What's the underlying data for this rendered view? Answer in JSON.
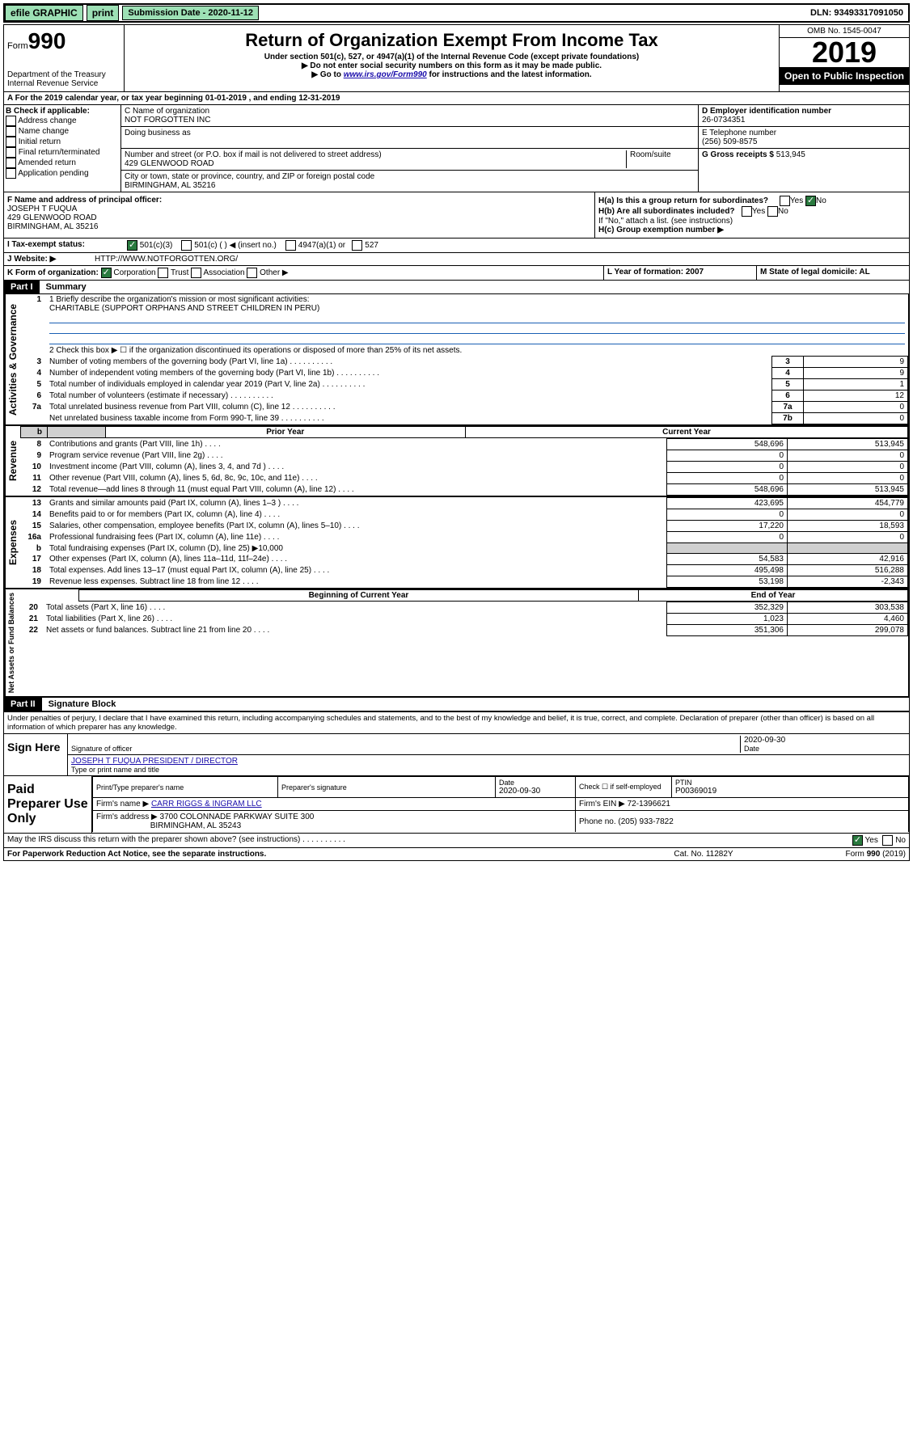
{
  "topbar": {
    "efile": "efile GRAPHIC",
    "print": "print",
    "submission": "Submission Date - 2020-11-12",
    "dln": "DLN: 93493317091050"
  },
  "header": {
    "form_prefix": "Form",
    "form_num": "990",
    "dept": "Department of the Treasury\nInternal Revenue Service",
    "title": "Return of Organization Exempt From Income Tax",
    "subtitle": "Under section 501(c), 527, or 4947(a)(1) of the Internal Revenue Code (except private foundations)",
    "note1": "▶ Do not enter social security numbers on this form as it may be made public.",
    "note2_pre": "▶ Go to ",
    "note2_link": "www.irs.gov/Form990",
    "note2_post": " for instructions and the latest information.",
    "omb": "OMB No. 1545-0047",
    "year": "2019",
    "open": "Open to Public Inspection"
  },
  "rowA": "A   For the 2019 calendar year, or tax year beginning 01-01-2019    , and ending 12-31-2019",
  "boxB": {
    "label": "B Check if applicable:",
    "opts": [
      "Address change",
      "Name change",
      "Initial return",
      "Final return/terminated",
      "Amended return",
      "Application pending"
    ]
  },
  "boxC": {
    "name_label": "C Name of organization",
    "name": "NOT FORGOTTEN INC",
    "dba_label": "Doing business as",
    "addr_label": "Number and street (or P.O. box if mail is not delivered to street address)",
    "room_label": "Room/suite",
    "addr": "429 GLENWOOD ROAD",
    "city_label": "City or town, state or province, country, and ZIP or foreign postal code",
    "city": "BIRMINGHAM, AL  35216"
  },
  "boxD": {
    "label": "D Employer identification number",
    "val": "26-0734351"
  },
  "boxE": {
    "label": "E Telephone number",
    "val": "(256) 509-8575"
  },
  "boxG": {
    "label": "G Gross receipts $",
    "val": "513,945"
  },
  "boxF": {
    "label": "F  Name and address of principal officer:",
    "name": "JOSEPH T FUQUA",
    "addr1": "429 GLENWOOD ROAD",
    "addr2": "BIRMINGHAM, AL  35216"
  },
  "boxH": {
    "a": "H(a)  Is this a group return for subordinates?",
    "b": "H(b)  Are all subordinates included?",
    "b_note": "If \"No,\" attach a list. (see instructions)",
    "c": "H(c)  Group exemption number ▶",
    "yes": "Yes",
    "no": "No"
  },
  "rowI": {
    "label": "I     Tax-exempt status:",
    "o1": "501(c)(3)",
    "o2": "501(c) (   ) ◀ (insert no.)",
    "o3": "4947(a)(1) or",
    "o4": "527"
  },
  "rowJ": {
    "label": "J    Website: ▶",
    "val": "HTTP://WWW.NOTFORGOTTEN.ORG/"
  },
  "rowK": {
    "label": "K Form of organization:",
    "o1": "Corporation",
    "o2": "Trust",
    "o3": "Association",
    "o4": "Other ▶",
    "L": "L Year of formation: 2007",
    "M": "M State of legal domicile: AL"
  },
  "part1": {
    "header": "Part I",
    "title": "Summary",
    "line1_label": "1  Briefly describe the organization's mission or most significant activities:",
    "line1_val": "CHARITABLE (SUPPORT ORPHANS AND STREET CHILDREN IN PERU)",
    "line2": "2   Check this box ▶ ☐  if the organization discontinued its operations or disposed of more than 25% of its net assets.",
    "rows_small": [
      {
        "n": "3",
        "d": "Number of voting members of the governing body (Part VI, line 1a)",
        "box": "3",
        "v": "9"
      },
      {
        "n": "4",
        "d": "Number of independent voting members of the governing body (Part VI, line 1b)",
        "box": "4",
        "v": "9"
      },
      {
        "n": "5",
        "d": "Total number of individuals employed in calendar year 2019 (Part V, line 2a)",
        "box": "5",
        "v": "1"
      },
      {
        "n": "6",
        "d": "Total number of volunteers (estimate if necessary)",
        "box": "6",
        "v": "12"
      },
      {
        "n": "7a",
        "d": "Total unrelated business revenue from Part VIII, column (C), line 12",
        "box": "7a",
        "v": "0"
      },
      {
        "n": "",
        "d": "Net unrelated business taxable income from Form 990-T, line 39",
        "box": "7b",
        "v": "0"
      }
    ],
    "col_hdr_prior": "Prior Year",
    "col_hdr_curr": "Current Year",
    "revenue": [
      {
        "n": "8",
        "d": "Contributions and grants (Part VIII, line 1h)",
        "p": "548,696",
        "c": "513,945"
      },
      {
        "n": "9",
        "d": "Program service revenue (Part VIII, line 2g)",
        "p": "0",
        "c": "0"
      },
      {
        "n": "10",
        "d": "Investment income (Part VIII, column (A), lines 3, 4, and 7d )",
        "p": "0",
        "c": "0"
      },
      {
        "n": "11",
        "d": "Other revenue (Part VIII, column (A), lines 5, 6d, 8c, 9c, 10c, and 11e)",
        "p": "0",
        "c": "0"
      },
      {
        "n": "12",
        "d": "Total revenue—add lines 8 through 11 (must equal Part VIII, column (A), line 12)",
        "p": "548,696",
        "c": "513,945"
      }
    ],
    "expenses": [
      {
        "n": "13",
        "d": "Grants and similar amounts paid (Part IX, column (A), lines 1–3 )",
        "p": "423,695",
        "c": "454,779"
      },
      {
        "n": "14",
        "d": "Benefits paid to or for members (Part IX, column (A), line 4)",
        "p": "0",
        "c": "0"
      },
      {
        "n": "15",
        "d": "Salaries, other compensation, employee benefits (Part IX, column (A), lines 5–10)",
        "p": "17,220",
        "c": "18,593"
      },
      {
        "n": "16a",
        "d": "Professional fundraising fees (Part IX, column (A), line 11e)",
        "p": "0",
        "c": "0"
      },
      {
        "n": "b",
        "d": "Total fundraising expenses (Part IX, column (D), line 25) ▶10,000",
        "p": "",
        "c": "",
        "grey": true
      },
      {
        "n": "17",
        "d": "Other expenses (Part IX, column (A), lines 11a–11d, 11f–24e)",
        "p": "54,583",
        "c": "42,916"
      },
      {
        "n": "18",
        "d": "Total expenses. Add lines 13–17 (must equal Part IX, column (A), line 25)",
        "p": "495,498",
        "c": "516,288"
      },
      {
        "n": "19",
        "d": "Revenue less expenses. Subtract line 18 from line 12",
        "p": "53,198",
        "c": "-2,343"
      }
    ],
    "col_hdr_begin": "Beginning of Current Year",
    "col_hdr_end": "End of Year",
    "netassets": [
      {
        "n": "20",
        "d": "Total assets (Part X, line 16)",
        "p": "352,329",
        "c": "303,538"
      },
      {
        "n": "21",
        "d": "Total liabilities (Part X, line 26)",
        "p": "1,023",
        "c": "4,460"
      },
      {
        "n": "22",
        "d": "Net assets or fund balances. Subtract line 21 from line 20",
        "p": "351,306",
        "c": "299,078"
      }
    ],
    "vert_gov": "Activities & Governance",
    "vert_rev": "Revenue",
    "vert_exp": "Expenses",
    "vert_net": "Net Assets or Fund Balances"
  },
  "part2": {
    "header": "Part II",
    "title": "Signature Block",
    "disclaimer": "Under penalties of perjury, I declare that I have examined this return, including accompanying schedules and statements, and to the best of my knowledge and belief, it is true, correct, and complete. Declaration of preparer (other than officer) is based on all information of which preparer has any knowledge.",
    "sign_here": "Sign Here",
    "sig_officer": "Signature of officer",
    "sig_date": "2020-09-30",
    "date_lbl": "Date",
    "officer_name": "JOSEPH T FUQUA  PRESIDENT / DIRECTOR",
    "type_name": "Type or print name and title",
    "paid": "Paid Preparer Use Only",
    "prep_name_lbl": "Print/Type preparer's name",
    "prep_sig_lbl": "Preparer's signature",
    "prep_date_lbl": "Date",
    "prep_date": "2020-09-30",
    "check_lbl": "Check ☐ if self-employed",
    "ptin_lbl": "PTIN",
    "ptin": "P00369019",
    "firm_name_lbl": "Firm's name    ▶",
    "firm_name": "CARR RIGGS & INGRAM LLC",
    "firm_ein_lbl": "Firm's EIN ▶",
    "firm_ein": "72-1396621",
    "firm_addr_lbl": "Firm's address ▶",
    "firm_addr": "3700 COLONNADE PARKWAY SUITE 300",
    "firm_city": "BIRMINGHAM, AL  35243",
    "phone_lbl": "Phone no.",
    "phone": "(205) 933-7822",
    "discuss": "May the IRS discuss this return with the preparer shown above? (see instructions)",
    "yes": "Yes",
    "no": "No"
  },
  "footer": {
    "pra": "For Paperwork Reduction Act Notice, see the separate instructions.",
    "cat": "Cat. No. 11282Y",
    "form": "Form 990 (2019)"
  }
}
